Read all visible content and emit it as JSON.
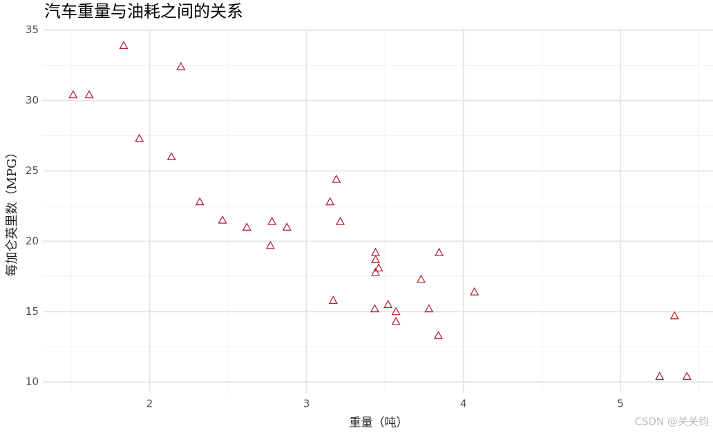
{
  "chart_data": {
    "type": "scatter",
    "title": "汽车重量与油耗之间的关系",
    "x_label": "重量（吨）",
    "y_label": "每加仑英里数（MPG）",
    "watermark": "CSDN @关关钧",
    "x": [
      2.62,
      2.875,
      2.32,
      3.215,
      3.44,
      3.46,
      3.57,
      3.19,
      3.15,
      3.44,
      3.44,
      4.07,
      3.73,
      3.78,
      5.25,
      5.424,
      5.345,
      2.2,
      1.615,
      1.835,
      2.465,
      3.52,
      3.435,
      3.84,
      3.845,
      1.935,
      2.14,
      1.513,
      3.17,
      2.77,
      3.57,
      2.78
    ],
    "values": [
      21.0,
      21.0,
      22.8,
      21.4,
      18.7,
      18.1,
      14.3,
      24.4,
      22.8,
      19.2,
      17.8,
      16.4,
      17.3,
      15.2,
      10.4,
      10.4,
      14.7,
      32.4,
      30.4,
      33.9,
      21.5,
      15.5,
      15.2,
      13.3,
      19.2,
      27.3,
      26.0,
      30.4,
      15.8,
      19.7,
      15.0,
      21.4
    ],
    "color": "#b2182b",
    "xlim": [
      1.32,
      5.59
    ],
    "xticks": [
      2,
      3,
      4,
      5
    ],
    "x_minor_grid": [
      1.5,
      2.5,
      3.5,
      4.5,
      5.5
    ],
    "ylim": [
      9.225,
      35.075
    ],
    "yticks": [
      10,
      15,
      20,
      25,
      30,
      35
    ],
    "y_minor_grid": [
      12.5,
      17.5,
      22.5,
      27.5,
      32.5
    ],
    "grid": true
  }
}
